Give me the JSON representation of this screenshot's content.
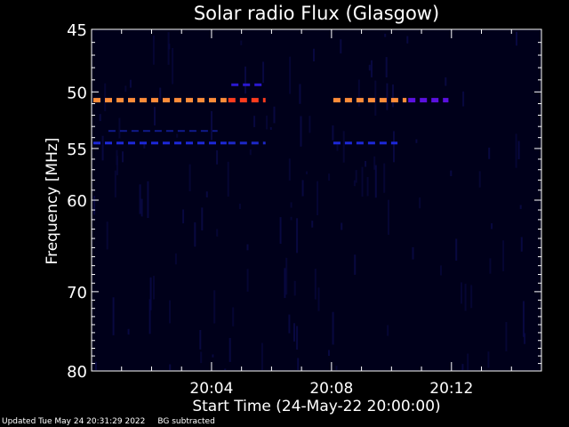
{
  "chart_data": {
    "type": "heatmap",
    "title": "Solar radio Flux (Glasgow)",
    "xlabel": "Start Time (24-May-22 20:00:00)",
    "ylabel": "Frequency [MHz]",
    "x_unit": "minutes after 20:00",
    "xlim": [
      0,
      15
    ],
    "ylim": [
      45,
      80
    ],
    "y_scale": "log",
    "y_ticks": [
      45,
      50,
      55,
      60,
      70,
      80
    ],
    "y_tick_labels": [
      "45",
      "50",
      "55",
      "60",
      "70",
      "80"
    ],
    "x_ticks": [
      4,
      8,
      12
    ],
    "x_tick_labels": [
      "20:04",
      "20:08",
      "20:12"
    ],
    "grid": false,
    "background_color": "#00001a",
    "bursts": [
      {
        "freq": 50.7,
        "t_start": 0.0,
        "t_end": 4.5,
        "intensity": "high",
        "color": "#ff8c3a"
      },
      {
        "freq": 50.7,
        "t_start": 4.5,
        "t_end": 5.8,
        "intensity": "high",
        "color": "#ff3c1e"
      },
      {
        "freq": 50.7,
        "t_start": 8.0,
        "t_end": 10.5,
        "intensity": "high",
        "color": "#ff8c3a"
      },
      {
        "freq": 50.7,
        "t_start": 10.5,
        "t_end": 11.9,
        "intensity": "medium",
        "color": "#5a10e0"
      },
      {
        "freq": 49.4,
        "t_start": 4.6,
        "t_end": 5.8,
        "intensity": "low",
        "color": "#2a18d0"
      },
      {
        "freq": 54.5,
        "t_start": 0.0,
        "t_end": 4.5,
        "intensity": "low",
        "color": "#1c28d8"
      },
      {
        "freq": 54.5,
        "t_start": 4.5,
        "t_end": 5.8,
        "intensity": "low",
        "color": "#1c28c8"
      },
      {
        "freq": 54.5,
        "t_start": 8.0,
        "t_end": 10.2,
        "intensity": "low",
        "color": "#1c28d8"
      },
      {
        "freq": 53.4,
        "t_start": 0.5,
        "t_end": 4.2,
        "intensity": "faint",
        "color": "#101a8a"
      }
    ]
  },
  "footer": {
    "updated": "Updated Tue May 24 20:31:29 2022",
    "note": "BG subtracted"
  }
}
